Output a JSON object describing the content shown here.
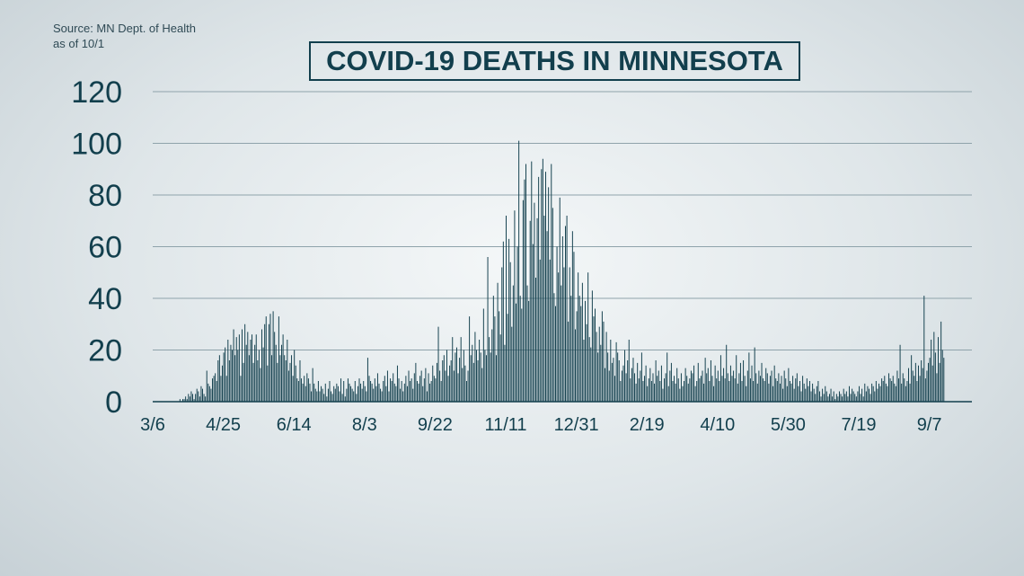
{
  "source": {
    "line1": "Source: MN Dept. of Health",
    "line2": "as of 10/1"
  },
  "colors": {
    "bar": "#123f4d",
    "grid": "#8fa3ab",
    "text": "#123f4d"
  },
  "chart_data": {
    "type": "bar",
    "title": "COVID-19 DEATHS IN MINNESOTA",
    "xlabel": "",
    "ylabel": "",
    "ylim": [
      0,
      120
    ],
    "yticks": [
      0,
      20,
      40,
      60,
      80,
      100,
      120
    ],
    "grid": true,
    "xtick_labels": [
      "3/6",
      "4/25",
      "6/14",
      "8/3",
      "9/22",
      "11/11",
      "12/31",
      "2/19",
      "4/10",
      "5/30",
      "7/19",
      "9/7"
    ],
    "start_date": "3/6",
    "tick_interval_days": 50,
    "series": [
      {
        "values": [
          0,
          0,
          0,
          0,
          0,
          0,
          0,
          0,
          0,
          0,
          0,
          0,
          0,
          0,
          0,
          0,
          0,
          0,
          0,
          1,
          0,
          1,
          1,
          2,
          1,
          3,
          2,
          4,
          3,
          1,
          3,
          5,
          4,
          2,
          6,
          5,
          3,
          2,
          12,
          7,
          6,
          5,
          9,
          10,
          11,
          8,
          16,
          18,
          10,
          14,
          19,
          21,
          10,
          24,
          16,
          22,
          20,
          28,
          18,
          25,
          20,
          26,
          10,
          28,
          15,
          30,
          22,
          27,
          18,
          24,
          26,
          15,
          22,
          26,
          16,
          20,
          13,
          28,
          21,
          30,
          33,
          14,
          30,
          34,
          18,
          35,
          27,
          22,
          15,
          33,
          18,
          22,
          26,
          18,
          16,
          24,
          12,
          15,
          18,
          10,
          20,
          14,
          9,
          8,
          16,
          9,
          7,
          10,
          6,
          11,
          9,
          7,
          4,
          13,
          7,
          5,
          4,
          8,
          4,
          6,
          5,
          3,
          7,
          2,
          5,
          8,
          4,
          3,
          6,
          5,
          7,
          6,
          4,
          9,
          3,
          8,
          2,
          5,
          9,
          7,
          6,
          5,
          4,
          8,
          3,
          6,
          9,
          7,
          5,
          8,
          6,
          4,
          17,
          10,
          8,
          7,
          5,
          9,
          6,
          11,
          7,
          5,
          4,
          8,
          10,
          6,
          12,
          4,
          9,
          8,
          11,
          7,
          6,
          14,
          9,
          5,
          8,
          4,
          7,
          10,
          6,
          12,
          8,
          9,
          5,
          11,
          15,
          8,
          7,
          10,
          12,
          6,
          9,
          13,
          4,
          11,
          7,
          8,
          14,
          10,
          9,
          15,
          29,
          12,
          8,
          16,
          18,
          12,
          20,
          10,
          14,
          16,
          25,
          12,
          19,
          21,
          11,
          17,
          25,
          13,
          20,
          14,
          8,
          12,
          33,
          18,
          22,
          15,
          27,
          20,
          16,
          24,
          19,
          13,
          36,
          20,
          18,
          56,
          25,
          19,
          28,
          41,
          33,
          18,
          46,
          35,
          26,
          52,
          62,
          22,
          72,
          34,
          63,
          54,
          29,
          45,
          74,
          38,
          60,
          101,
          41,
          36,
          78,
          86,
          92,
          45,
          39,
          70,
          93,
          61,
          77,
          48,
          71,
          87,
          55,
          90,
          94,
          72,
          89,
          66,
          83,
          55,
          92,
          75,
          42,
          37,
          60,
          50,
          79,
          45,
          64,
          52,
          68,
          72,
          31,
          52,
          41,
          66,
          58,
          28,
          35,
          50,
          41,
          37,
          46,
          24,
          39,
          30,
          50,
          25,
          21,
          43,
          33,
          36,
          27,
          19,
          29,
          22,
          35,
          31,
          13,
          27,
          19,
          12,
          24,
          15,
          17,
          10,
          23,
          19,
          16,
          8,
          12,
          14,
          20,
          11,
          16,
          24,
          9,
          13,
          17,
          11,
          7,
          15,
          9,
          12,
          19,
          8,
          10,
          14,
          6,
          9,
          13,
          8,
          11,
          7,
          16,
          10,
          12,
          8,
          14,
          5,
          9,
          11,
          19,
          6,
          12,
          15,
          8,
          10,
          7,
          13,
          9,
          5,
          11,
          6,
          8,
          13,
          10,
          7,
          9,
          12,
          11,
          14,
          6,
          8,
          15,
          9,
          10,
          12,
          7,
          17,
          11,
          13,
          8,
          16,
          10,
          6,
          14,
          9,
          12,
          8,
          18,
          10,
          13,
          9,
          22,
          11,
          8,
          14,
          10,
          12,
          9,
          18,
          7,
          11,
          15,
          8,
          16,
          10,
          6,
          12,
          19,
          9,
          14,
          8,
          21,
          11,
          7,
          12,
          10,
          15,
          9,
          8,
          13,
          11,
          7,
          10,
          12,
          6,
          14,
          9,
          8,
          11,
          7,
          10,
          5,
          12,
          9,
          6,
          13,
          8,
          7,
          10,
          5,
          9,
          11,
          6,
          8,
          4,
          10,
          7,
          5,
          9,
          6,
          8,
          4,
          7,
          5,
          3,
          6,
          8,
          4,
          2,
          5,
          3,
          6,
          4,
          2,
          3,
          5,
          2,
          4,
          1,
          3,
          2,
          4,
          3,
          2,
          5,
          3,
          4,
          2,
          6,
          3,
          5,
          4,
          3,
          2,
          4,
          6,
          3,
          5,
          2,
          7,
          4,
          6,
          5,
          3,
          7,
          6,
          4,
          8,
          5,
          7,
          6,
          9,
          8,
          10,
          7,
          6,
          11,
          9,
          8,
          10,
          7,
          6,
          12,
          9,
          22,
          7,
          11,
          9,
          6,
          8,
          13,
          7,
          18,
          12,
          10,
          15,
          8,
          14,
          10,
          16,
          13,
          41,
          9,
          12,
          15,
          17,
          24,
          14,
          27,
          19,
          11,
          25,
          15,
          31,
          20,
          17
        ]
      }
    ]
  }
}
